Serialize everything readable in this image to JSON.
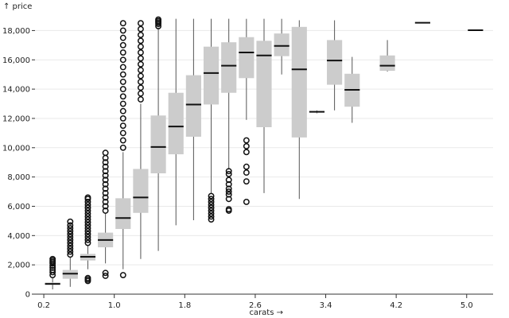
{
  "chart_data": {
    "type": "boxplot",
    "title": "",
    "xlabel": "carats →",
    "ylabel": "↑ price",
    "xlim": [
      0.1,
      5.3
    ],
    "ylim": [
      0,
      19000
    ],
    "xticks": [
      0.2,
      1.0,
      1.8,
      2.6,
      3.4,
      4.2,
      5.0
    ],
    "xtick_labels": [
      "0.2",
      "1.0",
      "1.8",
      "2.6",
      "3.4",
      "4.2",
      "5.0"
    ],
    "yticks": [
      0,
      2000,
      4000,
      6000,
      8000,
      10000,
      12000,
      14000,
      16000,
      18000
    ],
    "ytick_labels": [
      "0",
      "2,000",
      "4,000",
      "6,000",
      "8,000",
      "10,000",
      "12,000",
      "14,000",
      "16,000",
      "18,000"
    ],
    "bin_width": 0.2,
    "grid": true,
    "colors": {
      "box": "#cccccc",
      "median": "#111111",
      "whisker": "#555555",
      "outlier": "#111111",
      "grid": "#e9e9e9"
    },
    "boxes": [
      {
        "x0": 0.2,
        "x1": 0.4,
        "min": 326,
        "q1": 640,
        "median": 700,
        "q3": 800,
        "max": 1100,
        "outliers": [
          1300,
          1500,
          1650,
          1800,
          1950,
          2100,
          2200,
          2300,
          2400
        ]
      },
      {
        "x0": 0.4,
        "x1": 0.6,
        "min": 500,
        "q1": 1050,
        "median": 1400,
        "q3": 1650,
        "max": 2500,
        "outliers": [
          2700,
          2900,
          3100,
          3300,
          3500,
          3700,
          3900,
          4100,
          4300,
          4500,
          4700,
          4950
        ]
      },
      {
        "x0": 0.6,
        "x1": 0.8,
        "min": 1700,
        "q1": 2300,
        "median": 2550,
        "q3": 2750,
        "max": 3350,
        "outliers": [
          900,
          1000,
          1100,
          3500,
          3700,
          3900,
          4100,
          4300,
          4500,
          4700,
          4900,
          5100,
          5300,
          5500,
          5700,
          5900,
          6100,
          6300,
          6500,
          6600
        ]
      },
      {
        "x0": 0.8,
        "x1": 1.0,
        "min": 2100,
        "q1": 3200,
        "median": 3700,
        "q3": 4200,
        "max": 5500,
        "outliers": [
          1250,
          1450,
          5700,
          6000,
          6300,
          6600,
          6900,
          7200,
          7500,
          7800,
          8100,
          8400,
          8700,
          9000,
          9300,
          9650
        ]
      },
      {
        "x0": 1.0,
        "x1": 1.2,
        "min": 1700,
        "q1": 4450,
        "median": 5200,
        "q3": 6550,
        "max": 9700,
        "outliers": [
          1300,
          10000,
          10500,
          11000,
          11500,
          12000,
          12500,
          13000,
          13500,
          14000,
          14500,
          15000,
          15500,
          16000,
          16500,
          17000,
          17500,
          18000,
          18500
        ]
      },
      {
        "x0": 1.2,
        "x1": 1.4,
        "min": 2400,
        "q1": 5550,
        "median": 6600,
        "q3": 8550,
        "max": 13000,
        "outliers": [
          13300,
          13700,
          14100,
          14500,
          14900,
          15300,
          15700,
          16100,
          16500,
          16900,
          17300,
          17700,
          18100,
          18500
        ]
      },
      {
        "x0": 1.4,
        "x1": 1.6,
        "min": 2950,
        "q1": 8250,
        "median": 10050,
        "q3": 12200,
        "max": 18200,
        "outliers": [
          18300,
          18450,
          18550,
          18650,
          18750
        ]
      },
      {
        "x0": 1.6,
        "x1": 1.8,
        "min": 4700,
        "q1": 9550,
        "median": 11450,
        "q3": 13750,
        "max": 18800,
        "outliers": []
      },
      {
        "x0": 1.8,
        "x1": 2.0,
        "min": 5050,
        "q1": 10750,
        "median": 12950,
        "q3": 14950,
        "max": 18800,
        "outliers": []
      },
      {
        "x0": 2.0,
        "x1": 2.2,
        "min": 6900,
        "q1": 12950,
        "median": 15100,
        "q3": 16900,
        "max": 18800,
        "outliers": [
          5100,
          5300,
          5500,
          5700,
          5900,
          6100,
          6300,
          6500,
          6700
        ]
      },
      {
        "x0": 2.2,
        "x1": 2.4,
        "min": 8500,
        "q1": 13750,
        "median": 15600,
        "q3": 17200,
        "max": 18800,
        "outliers": [
          5700,
          5800,
          6500,
          6800,
          7000,
          7200,
          7500,
          7800,
          8200,
          8400
        ]
      },
      {
        "x0": 2.4,
        "x1": 2.6,
        "min": 11900,
        "q1": 14750,
        "median": 16500,
        "q3": 17550,
        "max": 18800,
        "outliers": [
          6300,
          7700,
          8300,
          8700,
          9700,
          10100,
          10500
        ]
      },
      {
        "x0": 2.6,
        "x1": 2.8,
        "min": 6900,
        "q1": 11400,
        "median": 16300,
        "q3": 17300,
        "max": 18800,
        "outliers": []
      },
      {
        "x0": 2.8,
        "x1": 3.0,
        "min": 15000,
        "q1": 16250,
        "median": 16950,
        "q3": 17800,
        "max": 18800,
        "outliers": []
      },
      {
        "x0": 3.0,
        "x1": 3.2,
        "min": 6500,
        "q1": 10700,
        "median": 15350,
        "q3": 18250,
        "max": 18700,
        "outliers": []
      },
      {
        "x0": 3.2,
        "x1": 3.4,
        "min": 12350,
        "q1": 12400,
        "median": 12450,
        "q3": 12500,
        "max": 12550,
        "outliers": []
      },
      {
        "x0": 3.4,
        "x1": 3.6,
        "min": 12550,
        "q1": 14300,
        "median": 15950,
        "q3": 17350,
        "max": 18700,
        "outliers": []
      },
      {
        "x0": 3.6,
        "x1": 3.8,
        "min": 11700,
        "q1": 12800,
        "median": 13950,
        "q3": 15050,
        "max": 16200,
        "outliers": []
      },
      {
        "x0": 4.0,
        "x1": 4.2,
        "min": 15200,
        "q1": 15250,
        "median": 15600,
        "q3": 16300,
        "max": 17350,
        "outliers": []
      },
      {
        "x0": 4.4,
        "x1": 4.6,
        "min": 18530,
        "q1": 18530,
        "median": 18530,
        "q3": 18530,
        "max": 18530,
        "outliers": []
      },
      {
        "x0": 5.0,
        "x1": 5.2,
        "min": 18020,
        "q1": 18020,
        "median": 18020,
        "q3": 18020,
        "max": 18020,
        "outliers": []
      }
    ]
  }
}
